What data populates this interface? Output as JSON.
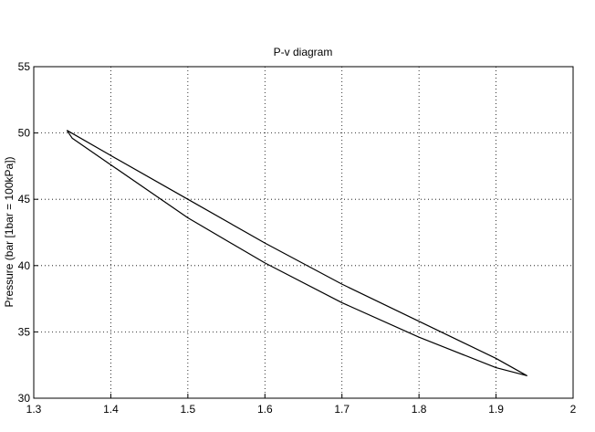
{
  "chart_data": {
    "type": "line",
    "title": "P-v diagram",
    "y_label": "Pressure (bar [1bar = 100kPa])",
    "x": [
      1.343,
      1.4,
      1.5,
      1.6,
      1.7,
      1.8,
      1.9,
      1.94,
      1.9,
      1.8,
      1.7,
      1.6,
      1.5,
      1.4,
      1.35,
      1.343
    ],
    "series": [
      {
        "color": "#000000",
        "values": [
          50.2,
          48.3,
          45.0,
          41.7,
          38.6,
          35.8,
          33.0,
          31.7,
          32.3,
          34.6,
          37.2,
          40.2,
          43.6,
          47.6,
          49.6,
          50.2
        ]
      }
    ],
    "xlim": [
      1.3,
      2
    ],
    "xticks": [
      1.3,
      1.4,
      1.5,
      1.6,
      1.7,
      1.8,
      1.9,
      2
    ],
    "ylim": [
      30,
      55
    ],
    "yticks": [
      30,
      35,
      40,
      45,
      50,
      55
    ],
    "grid": true
  }
}
